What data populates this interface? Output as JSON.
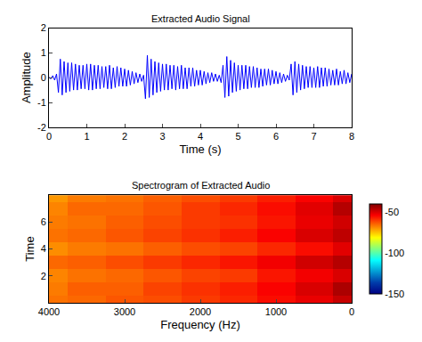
{
  "chart_data": [
    {
      "type": "line",
      "title": "Extracted Audio Signal",
      "x_label": "Time (s)",
      "y_label": "Amplitude",
      "color": "#0000ff",
      "grid": false,
      "xlim": [
        0,
        8
      ],
      "xticks": [
        0,
        1,
        2,
        3,
        4,
        5,
        6,
        7,
        8
      ],
      "ylim": [
        -2,
        2
      ],
      "yticks": [
        -2,
        -1,
        0,
        1,
        2
      ],
      "x": [
        0,
        0.05,
        0.1,
        0.15,
        0.2,
        0.25,
        0.3,
        0.35,
        0.4,
        0.45,
        0.5,
        0.55,
        0.6,
        0.65,
        0.7,
        0.75,
        0.8,
        0.85,
        0.9,
        0.95,
        1,
        1.05,
        1.1,
        1.15,
        1.2,
        1.25,
        1.3,
        1.35,
        1.4,
        1.45,
        1.5,
        1.55,
        1.6,
        1.65,
        1.7,
        1.75,
        1.8,
        1.85,
        1.9,
        1.95,
        2,
        2.05,
        2.1,
        2.15,
        2.2,
        2.25,
        2.3,
        2.35,
        2.4,
        2.45,
        2.5,
        2.55,
        2.6,
        2.65,
        2.7,
        2.75,
        2.8,
        2.85,
        2.9,
        2.95,
        3,
        3.05,
        3.1,
        3.15,
        3.2,
        3.25,
        3.3,
        3.35,
        3.4,
        3.45,
        3.5,
        3.55,
        3.6,
        3.65,
        3.7,
        3.75,
        3.8,
        3.85,
        3.9,
        3.95,
        4,
        4.05,
        4.1,
        4.15,
        4.2,
        4.25,
        4.3,
        4.35,
        4.4,
        4.45,
        4.5,
        4.55,
        4.6,
        4.65,
        4.7,
        4.75,
        4.8,
        4.85,
        4.9,
        4.95,
        5,
        5.05,
        5.1,
        5.15,
        5.2,
        5.25,
        5.3,
        5.35,
        5.4,
        5.45,
        5.5,
        5.55,
        5.6,
        5.65,
        5.7,
        5.75,
        5.8,
        5.85,
        5.9,
        5.95,
        6,
        6.05,
        6.1,
        6.15,
        6.2,
        6.25,
        6.3,
        6.35,
        6.4,
        6.45,
        6.5,
        6.55,
        6.6,
        6.65,
        6.7,
        6.75,
        6.8,
        6.85,
        6.9,
        6.95,
        7,
        7.05,
        7.1,
        7.15,
        7.2,
        7.25,
        7.3,
        7.35,
        7.4,
        7.45,
        7.5,
        7.55,
        7.6,
        7.65,
        7.7,
        7.75,
        7.8,
        7.85,
        7.9,
        7.95,
        8
      ],
      "values": [
        0.02,
        -0.05,
        0.08,
        -0.1,
        0.15,
        -0.6,
        0.75,
        -0.7,
        0.65,
        -0.6,
        0.6,
        -0.55,
        0.6,
        -0.5,
        0.55,
        -0.5,
        0.5,
        -0.45,
        0.5,
        -0.45,
        0.55,
        -0.5,
        0.55,
        -0.5,
        0.5,
        -0.45,
        0.5,
        -0.45,
        0.45,
        -0.4,
        0.45,
        -0.45,
        0.5,
        -0.45,
        0.4,
        -0.4,
        0.45,
        -0.35,
        0.4,
        -0.35,
        0.35,
        -0.35,
        0.3,
        -0.3,
        0.25,
        -0.25,
        0.2,
        -0.2,
        0.15,
        -0.15,
        0.1,
        -0.85,
        0.9,
        -0.8,
        0.75,
        -0.7,
        0.65,
        -0.6,
        0.6,
        -0.55,
        0.55,
        -0.5,
        0.55,
        -0.5,
        0.5,
        -0.45,
        0.5,
        -0.5,
        0.45,
        -0.45,
        0.5,
        -0.45,
        0.4,
        -0.45,
        0.4,
        -0.35,
        0.4,
        -0.35,
        0.3,
        -0.3,
        0.3,
        -0.3,
        0.25,
        -0.25,
        0.2,
        -0.2,
        0.2,
        -0.15,
        0.15,
        -0.15,
        0.1,
        -0.2,
        0.5,
        -0.8,
        0.85,
        -0.75,
        0.7,
        -0.6,
        0.6,
        -0.55,
        0.5,
        -0.5,
        0.5,
        -0.45,
        0.5,
        -0.45,
        0.45,
        -0.4,
        0.45,
        -0.4,
        0.4,
        -0.4,
        0.35,
        -0.35,
        0.35,
        -0.3,
        0.35,
        -0.3,
        0.3,
        -0.25,
        0.25,
        -0.25,
        0.2,
        -0.2,
        0.15,
        -0.15,
        0.1,
        -0.1,
        0.55,
        -0.7,
        0.65,
        -0.6,
        0.55,
        -0.5,
        0.5,
        -0.45,
        0.45,
        -0.4,
        0.45,
        -0.4,
        0.4,
        -0.4,
        0.45,
        -0.4,
        0.4,
        -0.35,
        0.4,
        -0.35,
        0.35,
        -0.3,
        0.3,
        -0.3,
        0.35,
        -0.3,
        0.25,
        -0.25,
        0.3,
        -0.25,
        0.2,
        -0.2,
        0.15
      ]
    },
    {
      "type": "heatmap",
      "title": "Spectrogram of Extracted Audio",
      "x_label": "Frequency (Hz)",
      "y_label": "Time",
      "xlim": [
        4000,
        0
      ],
      "xticks": [
        4000,
        3000,
        2000,
        1000,
        0
      ],
      "ylim": [
        0,
        8
      ],
      "yticks": [
        2,
        4,
        6
      ],
      "x": [
        0,
        500,
        1000,
        1500,
        2000,
        2500,
        3000,
        3500,
        4000
      ],
      "y": [
        0,
        1,
        2,
        3,
        4,
        5,
        6,
        7,
        8
      ],
      "cells": [
        [
          -48,
          -52,
          -55,
          -58,
          -60,
          -62,
          -63,
          -65,
          -66
        ],
        [
          -45,
          -50,
          -54,
          -57,
          -59,
          -61,
          -64,
          -64,
          -67
        ],
        [
          -50,
          -53,
          -56,
          -60,
          -61,
          -63,
          -65,
          -66,
          -68
        ],
        [
          -46,
          -49,
          -53,
          -56,
          -58,
          -60,
          -62,
          -64,
          -65
        ],
        [
          -51,
          -55,
          -58,
          -61,
          -62,
          -64,
          -66,
          -67,
          -69
        ],
        [
          -47,
          -50,
          -54,
          -57,
          -59,
          -61,
          -63,
          -65,
          -66
        ],
        [
          -49,
          -52,
          -56,
          -59,
          -60,
          -62,
          -64,
          -66,
          -67
        ],
        [
          -46,
          -51,
          -55,
          -58,
          -60,
          -63,
          -65,
          -65,
          -68
        ],
        [
          -50,
          -54,
          -57,
          -60,
          -62,
          -64,
          -66,
          -67,
          -70
        ]
      ],
      "colorbar": {
        "range": [
          -150,
          -40
        ],
        "ticks": [
          -50,
          -100,
          -150
        ]
      }
    }
  ]
}
